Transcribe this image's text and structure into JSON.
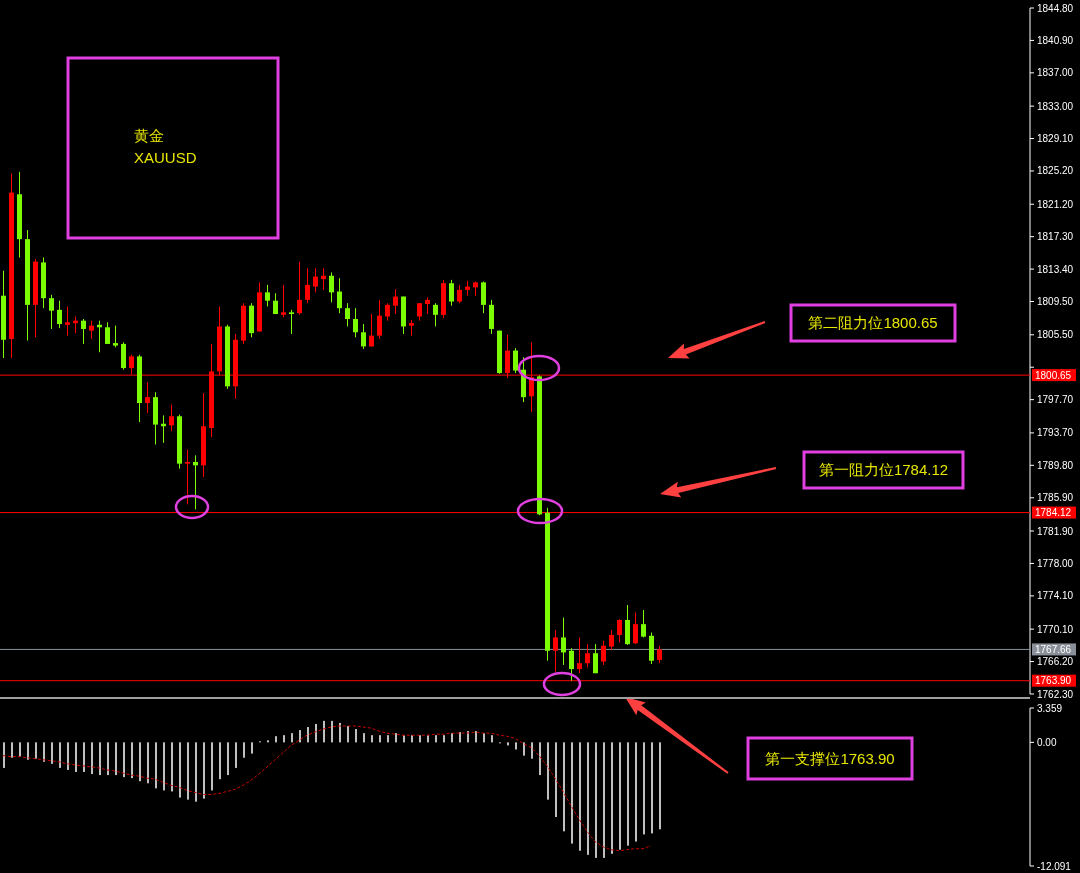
{
  "chart_data": [
    {
      "type": "candlestick",
      "annotations": [
        "黄金",
        "XAUUSD",
        "第二阻力位1800.65",
        "第一阻力位1784.12",
        "第一支撑位1763.90"
      ],
      "categories": [
        null,
        null,
        null,
        null,
        null,
        null,
        null,
        null,
        null,
        null,
        null,
        null,
        null,
        null,
        null,
        null,
        null,
        null,
        null,
        null,
        null,
        null,
        null,
        null,
        null,
        null,
        null,
        null,
        null,
        null,
        null,
        null,
        null,
        null,
        null,
        null,
        null,
        null,
        null,
        null,
        null,
        null,
        null,
        null,
        null,
        null,
        null,
        null,
        null,
        null,
        null,
        null,
        null,
        null,
        null,
        null,
        null,
        null,
        null,
        null,
        null,
        null,
        null,
        null,
        null,
        null,
        null,
        null,
        null,
        null,
        null,
        null,
        null,
        null,
        null,
        null,
        null,
        null,
        null,
        null,
        null,
        null,
        null,
        null,
        null,
        null,
        null,
        null,
        null,
        null,
        null,
        null,
        null,
        null,
        null,
        null,
        null,
        null,
        null,
        null,
        null,
        null,
        null,
        null,
        null,
        null,
        null,
        null,
        null,
        null,
        null,
        null,
        null,
        null,
        null,
        null,
        null,
        null,
        null,
        null,
        null,
        null,
        null,
        null,
        null,
        null,
        null,
        null
      ],
      "ohlc": [
        [
          1810.2,
          1813.2,
          1802.7,
          1804.9
        ],
        [
          1805.0,
          1824.9,
          1802.7,
          1822.6
        ],
        [
          1822.4,
          1825.1,
          1814.8,
          1817.0
        ],
        [
          1817.0,
          1818.1,
          1804.8,
          1809.1
        ],
        [
          1809.1,
          1814.6,
          1805.2,
          1814.3
        ],
        [
          1814.2,
          1814.8,
          1808.7,
          1809.9
        ],
        [
          1809.9,
          1810.3,
          1806.2,
          1808.4
        ],
        [
          1808.5,
          1809.6,
          1806.3,
          1806.8
        ],
        [
          1806.7,
          1808.9,
          1805.4,
          1807.0
        ],
        [
          1806.9,
          1807.7,
          1805.7,
          1807.2
        ],
        [
          1807.2,
          1807.4,
          1804.4,
          1806.2
        ],
        [
          1806.0,
          1807.2,
          1805.0,
          1806.6
        ],
        [
          1806.7,
          1807.2,
          1803.4,
          1806.4
        ],
        [
          1806.4,
          1807.0,
          1804.4,
          1804.4
        ],
        [
          1804.5,
          1806.6,
          1804.0,
          1804.2
        ],
        [
          1804.4,
          1804.6,
          1801.3,
          1801.5
        ],
        [
          1801.5,
          1803.1,
          1800.7,
          1802.9
        ],
        [
          1802.9,
          1803.1,
          1795.0,
          1797.3
        ],
        [
          1797.3,
          1799.8,
          1796.1,
          1798.0
        ],
        [
          1798.0,
          1798.6,
          1792.3,
          1794.7
        ],
        [
          1794.8,
          1795.8,
          1792.5,
          1794.5
        ],
        [
          1794.6,
          1797.1,
          1793.9,
          1795.7
        ],
        [
          1795.7,
          1795.9,
          1789.4,
          1790.0
        ],
        [
          1790.0,
          1791.7,
          1785.1,
          1790.2
        ],
        [
          1790.2,
          1791.0,
          1784.5,
          1789.8
        ],
        [
          1789.8,
          1798.5,
          1788.4,
          1794.5
        ],
        [
          1794.3,
          1804.4,
          1793.2,
          1801.1
        ],
        [
          1801.1,
          1808.9,
          1800.6,
          1806.5
        ],
        [
          1806.5,
          1806.7,
          1799.0,
          1799.3
        ],
        [
          1799.3,
          1805.6,
          1797.8,
          1804.9
        ],
        [
          1804.8,
          1809.3,
          1804.4,
          1809.0
        ],
        [
          1809.0,
          1809.3,
          1805.2,
          1805.7
        ],
        [
          1805.9,
          1811.8,
          1805.9,
          1810.6
        ],
        [
          1810.6,
          1811.5,
          1808.9,
          1809.6
        ],
        [
          1809.6,
          1810.5,
          1808.0,
          1808.0
        ],
        [
          1807.9,
          1811.5,
          1807.6,
          1808.2
        ],
        [
          1808.2,
          1808.5,
          1805.6,
          1808.0
        ],
        [
          1808.1,
          1814.3,
          1807.9,
          1809.7
        ],
        [
          1809.7,
          1813.5,
          1809.3,
          1811.5
        ],
        [
          1811.3,
          1813.5,
          1810.6,
          1812.5
        ],
        [
          1812.2,
          1813.5,
          1810.9,
          1812.6
        ],
        [
          1812.6,
          1813.0,
          1809.4,
          1810.6
        ],
        [
          1810.7,
          1812.3,
          1808.1,
          1808.7
        ],
        [
          1808.7,
          1809.3,
          1806.5,
          1807.4
        ],
        [
          1807.4,
          1808.7,
          1805.2,
          1805.8
        ],
        [
          1805.8,
          1806.8,
          1803.8,
          1804.1
        ],
        [
          1804.1,
          1808.0,
          1804.1,
          1805.4
        ],
        [
          1805.4,
          1809.7,
          1805.0,
          1807.8
        ],
        [
          1807.7,
          1809.3,
          1807.2,
          1809.1
        ],
        [
          1809.0,
          1811.0,
          1808.0,
          1810.1
        ],
        [
          1810.1,
          1810.1,
          1805.6,
          1806.5
        ],
        [
          1806.6,
          1807.3,
          1805.4,
          1806.9
        ],
        [
          1807.7,
          1809.3,
          1807.2,
          1809.3
        ],
        [
          1809.2,
          1810.0,
          1808.0,
          1809.7
        ],
        [
          1809.1,
          1809.3,
          1806.5,
          1807.9
        ],
        [
          1807.9,
          1812.1,
          1807.5,
          1811.7
        ],
        [
          1811.7,
          1812.1,
          1809.0,
          1809.5
        ],
        [
          1809.5,
          1811.5,
          1809.3,
          1810.9
        ],
        [
          1810.9,
          1812.0,
          1810.2,
          1811.3
        ],
        [
          1811.2,
          1811.9,
          1810.2,
          1811.8
        ],
        [
          1811.8,
          1811.9,
          1808.1,
          1809.1
        ],
        [
          1809.1,
          1809.7,
          1805.6,
          1806.2
        ],
        [
          1806.0,
          1806.0,
          1800.8,
          1800.9
        ],
        [
          1800.9,
          1805.5,
          1800.3,
          1803.6
        ],
        [
          1803.6,
          1803.9,
          1800.9,
          1801.2
        ],
        [
          1801.3,
          1802.8,
          1797.4,
          1798.0
        ],
        [
          1798.1,
          1804.6,
          1796.2,
          1800.4
        ],
        [
          1800.5,
          1800.6,
          1783.8,
          1783.9
        ],
        [
          1784.1,
          1784.7,
          1766.3,
          1767.5
        ],
        [
          1767.5,
          1770.0,
          1765.0,
          1769.1
        ],
        [
          1769.1,
          1771.5,
          1765.8,
          1767.3
        ],
        [
          1767.5,
          1767.8,
          1763.9,
          1765.3
        ],
        [
          1765.3,
          1769.1,
          1764.8,
          1766.0
        ],
        [
          1766.0,
          1768.3,
          1765.5,
          1767.2
        ],
        [
          1767.2,
          1768.3,
          1764.8,
          1764.8
        ],
        [
          1766.2,
          1768.7,
          1765.8,
          1768.1
        ],
        [
          1768.0,
          1770.0,
          1767.6,
          1769.4
        ],
        [
          1769.4,
          1771.3,
          1768.5,
          1771.2
        ],
        [
          1771.2,
          1773.0,
          1768.2,
          1768.3
        ],
        [
          1768.4,
          1772.1,
          1768.3,
          1770.7
        ],
        [
          1770.7,
          1772.4,
          1769.1,
          1769.2
        ],
        [
          1769.3,
          1769.7,
          1765.9,
          1766.3
        ],
        [
          1766.4,
          1768.1,
          1766.0,
          1767.66
        ],
        null,
        null,
        null,
        null,
        null,
        null,
        null,
        null,
        null,
        null,
        null,
        null,
        null,
        null,
        null,
        null,
        null,
        null,
        null,
        null,
        null,
        null,
        null,
        null,
        null,
        null,
        null,
        null,
        null,
        null,
        null,
        null,
        null,
        null,
        null,
        null,
        null,
        null,
        null,
        null,
        null,
        null,
        null,
        null,
        null
      ],
      "colors": [
        "#7cfc00",
        "#ff0000",
        "#7cfc00",
        "#7cfc00",
        "#ff0000",
        "#7cfc00",
        "#7cfc00",
        "#7cfc00",
        "#ff0000",
        "#ff0000",
        "#7cfc00",
        "#ff0000",
        "#7cfc00",
        "#7cfc00",
        "#7cfc00",
        "#7cfc00",
        "#ff0000",
        "#7cfc00",
        "#ff0000",
        "#7cfc00",
        "#7cfc00",
        "#ff0000",
        "#7cfc00",
        "#ff0000",
        "#7cfc00",
        "#ff0000",
        "#ff0000",
        "#ff0000",
        "#7cfc00",
        "#ff0000",
        "#ff0000",
        "#7cfc00",
        "#ff0000",
        "#7cfc00",
        "#7cfc00",
        "#ff0000",
        "#7cfc00",
        "#ff0000",
        "#ff0000",
        "#ff0000",
        "#ff0000",
        "#7cfc00",
        "#7cfc00",
        "#7cfc00",
        "#7cfc00",
        "#7cfc00",
        "#ff0000",
        "#ff0000",
        "#ff0000",
        "#ff0000",
        "#7cfc00",
        "#ff0000",
        "#ff0000",
        "#ff0000",
        "#7cfc00",
        "#ff0000",
        "#7cfc00",
        "#ff0000",
        "#ff0000",
        "#ff0000",
        "#7cfc00",
        "#7cfc00",
        "#7cfc00",
        "#ff0000",
        "#7cfc00",
        "#7cfc00",
        "#ff0000",
        "#7cfc00",
        "#7cfc00",
        "#ff0000",
        "#7cfc00",
        "#7cfc00",
        "#ff0000",
        "#ff0000",
        "#7cfc00",
        "#ff0000",
        "#ff0000",
        "#ff0000",
        "#7cfc00",
        "#ff0000",
        "#7cfc00",
        "#7cfc00",
        "#ff0000",
        null,
        null,
        null,
        null,
        null,
        null,
        null,
        null,
        null,
        null,
        null,
        null,
        null,
        null,
        null,
        null,
        null,
        null,
        null,
        null,
        null,
        null,
        null,
        null,
        null,
        null,
        null,
        null,
        null,
        null,
        null,
        null,
        null,
        null,
        null,
        null,
        null,
        null,
        null,
        null,
        null,
        null,
        null,
        null,
        null
      ],
      "ylim": [
        1762.3,
        1844.8
      ],
      "yticks": [
        {
          "value": 1844.8,
          "label": "1844.80"
        },
        {
          "value": 1840.9,
          "label": "1840.90"
        },
        {
          "value": 1837.0,
          "label": "1837.00"
        },
        {
          "value": 1833.0,
          "label": "1833.00"
        },
        {
          "value": 1829.1,
          "label": "1829.10"
        },
        {
          "value": 1825.2,
          "label": "1825.20"
        },
        {
          "value": 1821.2,
          "label": "1821.20"
        },
        {
          "value": 1817.3,
          "label": "1817.30"
        },
        {
          "value": 1813.4,
          "label": "1813.40"
        },
        {
          "value": 1809.5,
          "label": "1809.50"
        },
        {
          "value": 1805.5,
          "label": "1805.50"
        },
        {
          "value": 1801.6,
          "label": null
        },
        {
          "value": 1797.7,
          "label": "1797.70"
        },
        {
          "value": 1793.7,
          "label": "1793.70"
        },
        {
          "value": 1789.8,
          "label": "1789.80"
        },
        {
          "value": 1785.9,
          "label": "1785.90"
        },
        {
          "value": 1781.9,
          "label": "1781.90"
        },
        {
          "value": 1778.0,
          "label": "1778.00"
        },
        {
          "value": 1774.1,
          "label": "1774.10"
        },
        {
          "value": 1770.1,
          "label": "1770.10"
        },
        {
          "value": 1766.2,
          "label": "1766.20"
        },
        {
          "value": 1762.3,
          "label": "1762.30"
        }
      ],
      "ref_lines": [
        {
          "axis": "y",
          "value": 1800.65,
          "label": "1800.65",
          "color": "#ff0000"
        },
        {
          "axis": "y",
          "value": 1784.12,
          "label": "1784.12",
          "color": "#ff0000"
        },
        {
          "axis": "y",
          "value": 1767.66,
          "label": "1767.66",
          "color": "#8a9099"
        },
        {
          "axis": "y",
          "value": 1763.9,
          "label": "1763.90",
          "color": "#ff0000"
        }
      ]
    },
    {
      "type": "bar",
      "categories": [
        null,
        null,
        null,
        null,
        null,
        null,
        null,
        null,
        null,
        null,
        null,
        null,
        null,
        null,
        null,
        null,
        null,
        null,
        null,
        null,
        null,
        null,
        null,
        null,
        null,
        null,
        null,
        null,
        null,
        null,
        null,
        null,
        null,
        null,
        null,
        null,
        null,
        null,
        null,
        null,
        null,
        null,
        null,
        null,
        null,
        null,
        null,
        null,
        null,
        null,
        null,
        null,
        null,
        null,
        null,
        null,
        null,
        null,
        null,
        null,
        null,
        null,
        null,
        null,
        null,
        null,
        null,
        null,
        null,
        null,
        null,
        null,
        null,
        null,
        null,
        null,
        null,
        null,
        null,
        null,
        null,
        null,
        null,
        null,
        null,
        null,
        null,
        null,
        null,
        null,
        null,
        null,
        null,
        null,
        null,
        null,
        null,
        null,
        null,
        null,
        null,
        null,
        null,
        null,
        null,
        null,
        null,
        null,
        null,
        null,
        null,
        null,
        null,
        null,
        null,
        null,
        null,
        null,
        null,
        null,
        null,
        null,
        null,
        null,
        null,
        null,
        null,
        null
      ],
      "ylim": [
        -12.091,
        3.359
      ],
      "yticks": [
        3.359,
        {
          "value": 0,
          "label": "0.00"
        },
        -12.091
      ],
      "series": [
        {
          "type": "bar",
          "color": "#c0c0c0",
          "values": [
            -2.5,
            -1.5,
            -1.4,
            -1.7,
            -1.6,
            -1.9,
            -2.1,
            -2.5,
            -2.7,
            -2.9,
            -2.9,
            -3.1,
            -3.2,
            -3.2,
            -3.2,
            -3.4,
            -3.5,
            -3.8,
            -4.0,
            -4.5,
            -4.7,
            -4.8,
            -5.4,
            -5.6,
            -5.8,
            -5.5,
            -4.7,
            -3.6,
            -3.2,
            -2.5,
            -1.5,
            -1.1,
            0.1,
            0.2,
            0.6,
            0.7,
            0.9,
            1.2,
            1.5,
            1.8,
            2.1,
            2.1,
            1.9,
            1.6,
            1.3,
            0.9,
            0.7,
            0.7,
            0.7,
            0.9,
            0.7,
            0.7,
            0.7,
            0.7,
            0.7,
            0.7,
            0.9,
            1.0,
            1.1,
            1.1,
            0.9,
            0.7,
            0,
            -0.3,
            -0.7,
            -1.3,
            -1.6,
            -3.2,
            -5.6,
            -7.3,
            -8.7,
            -9.9,
            -10.6,
            -11.0,
            -11.3,
            -11.3,
            -10.9,
            -10.5,
            -10.1,
            -9.7,
            -9.0,
            -8.9,
            -8.5,
            null,
            null,
            null,
            null,
            null,
            null,
            null,
            null,
            null,
            null,
            null,
            null,
            null,
            null,
            null,
            null,
            null,
            null,
            null,
            null,
            null,
            null,
            null,
            null,
            null,
            null,
            null,
            null,
            null,
            null,
            null,
            null,
            null,
            null,
            null,
            null,
            null,
            null,
            null,
            null,
            null,
            null,
            null,
            null,
            null
          ]
        },
        {
          "type": "line",
          "color": "#cc0000",
          "line_style": "dashed",
          "values": [
            -1.3,
            -1.4,
            -1.4,
            -1.5,
            -1.6,
            -1.7,
            -1.8,
            -1.9,
            -2.1,
            -2.2,
            -2.3,
            -2.4,
            -2.5,
            -2.7,
            -2.8,
            -3.0,
            -3.2,
            -3.3,
            -3.5,
            -3.6,
            -3.9,
            -4.2,
            -4.4,
            -4.7,
            -4.9,
            -5.1,
            -5.1,
            -5.0,
            -4.8,
            -4.6,
            -4.2,
            -3.7,
            -3.1,
            -2.4,
            -1.7,
            -1.0,
            -0.3,
            0.2,
            0.7,
            1.0,
            1.3,
            1.5,
            1.6,
            1.6,
            1.6,
            1.5,
            1.4,
            1.1,
            0.9,
            0.8,
            0.7,
            0.7,
            0.7,
            0.7,
            0.8,
            0.8,
            0.9,
            0.9,
            0.9,
            1.0,
            0.9,
            0.9,
            0.7,
            0.6,
            0.4,
            -0.1,
            -0.5,
            -1.3,
            -2.3,
            -3.5,
            -4.8,
            -6.2,
            -7.5,
            -8.7,
            -9.7,
            -10.2,
            -10.5,
            -10.6,
            -10.5,
            -10.4,
            -10.4,
            -10.1,
            null,
            null,
            null,
            null,
            null,
            null,
            null,
            null,
            null,
            null,
            null,
            null,
            null,
            null,
            null,
            null,
            null,
            null,
            null,
            null,
            null,
            null,
            null,
            null,
            null,
            null,
            null,
            null,
            null,
            null,
            null,
            null,
            null,
            null,
            null,
            null,
            null,
            null,
            null,
            null,
            null,
            null,
            null,
            null,
            null,
            null
          ]
        }
      ]
    }
  ]
}
